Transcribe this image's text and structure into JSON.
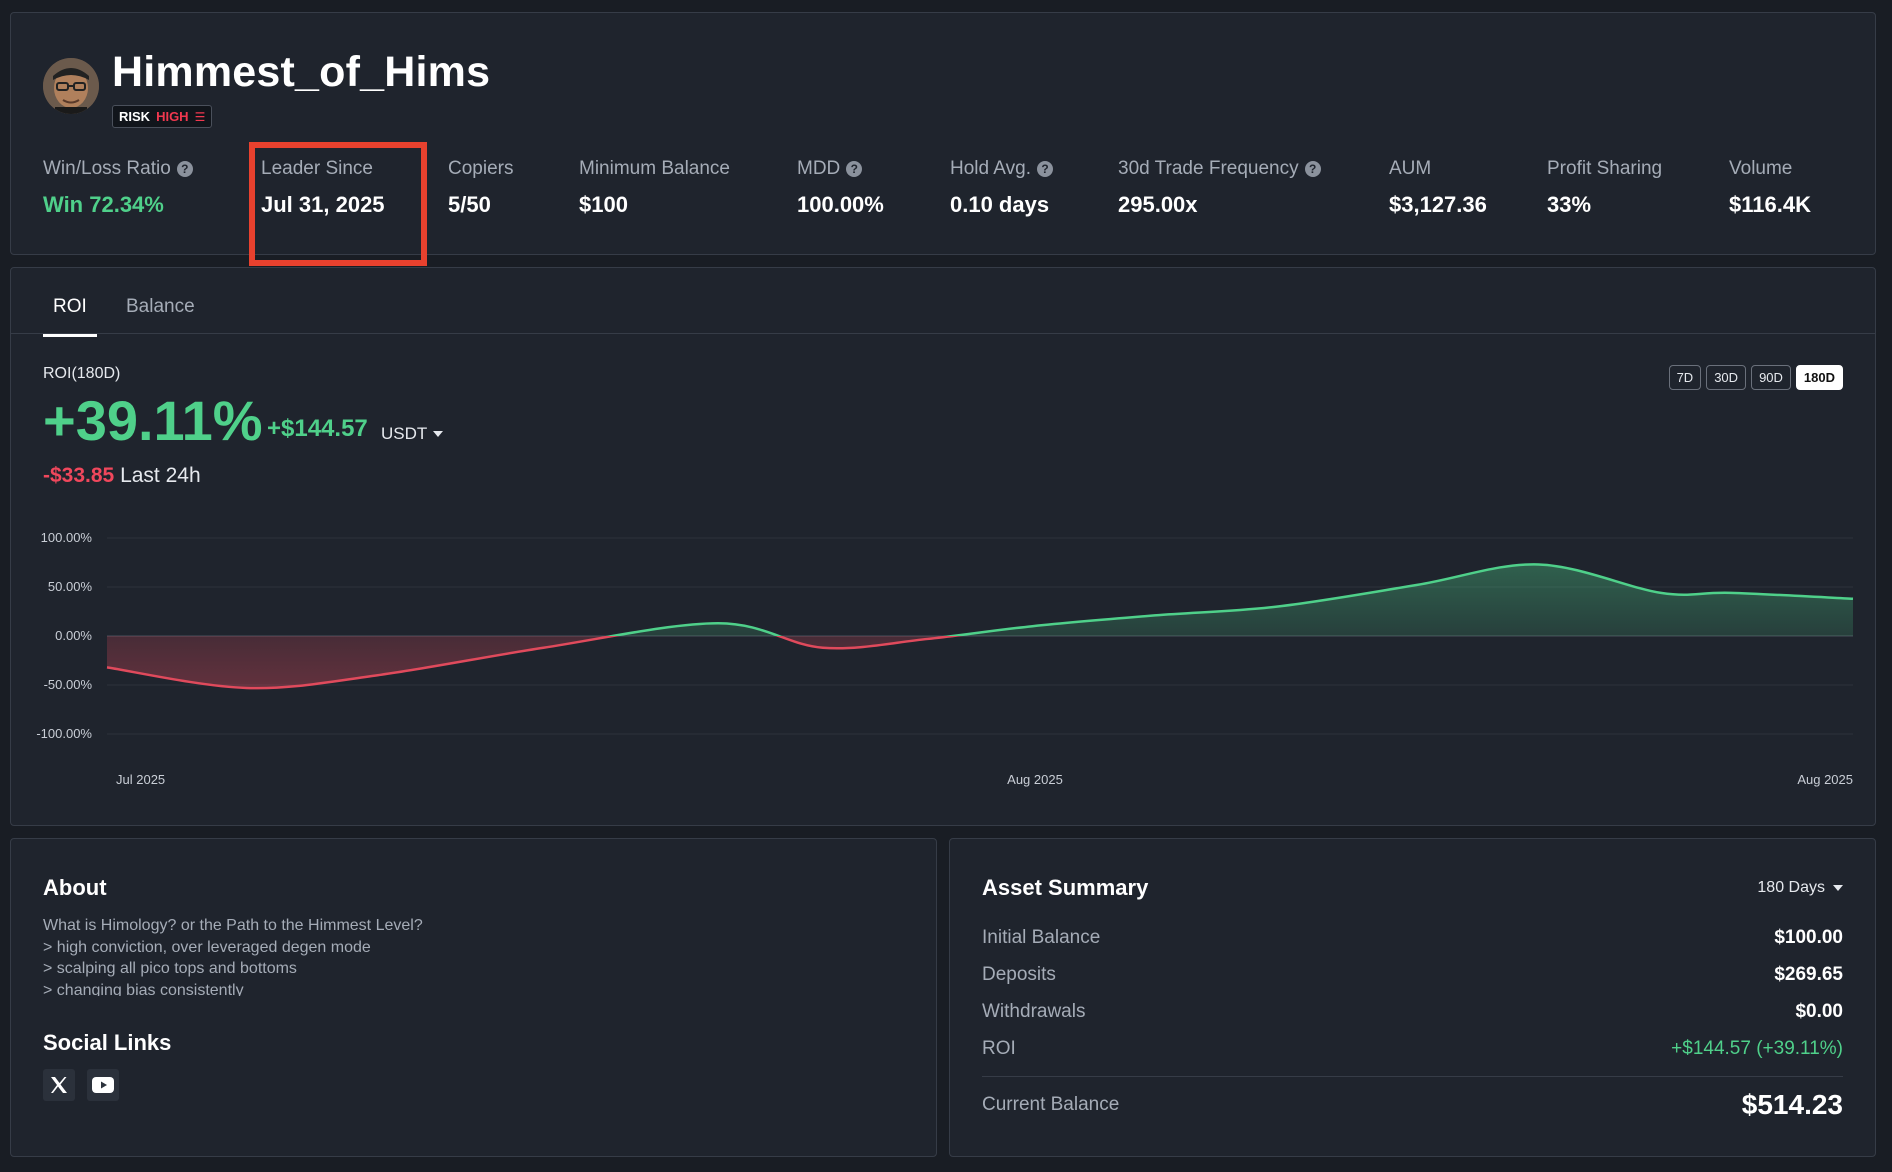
{
  "profile": {
    "name": "Himmest_of_Hims",
    "risk_label": "RISK",
    "risk_level": "HIGH",
    "risk_icon": "risk-level-bars-icon"
  },
  "stats": [
    {
      "label": "Win/Loss Ratio",
      "value": "Win 72.34%",
      "help": true,
      "color": "#4fd08a"
    },
    {
      "label": "Leader Since",
      "value": "Jul 31, 2025",
      "help": false,
      "highlighted": true
    },
    {
      "label": "Copiers",
      "value": "5/50",
      "help": false
    },
    {
      "label": "Minimum Balance",
      "value": "$100",
      "help": false
    },
    {
      "label": "MDD",
      "value": "100.00%",
      "help": true
    },
    {
      "label": "Hold Avg.",
      "value": "0.10 days",
      "help": true
    },
    {
      "label": "30d Trade Frequency",
      "value": "295.00x",
      "help": true
    },
    {
      "label": "AUM",
      "value": "$3,127.36",
      "help": false
    },
    {
      "label": "Profit Sharing",
      "value": "33%",
      "help": false
    },
    {
      "label": "Volume",
      "value": "$116.4K",
      "help": false
    }
  ],
  "tabs": [
    {
      "label": "ROI",
      "active": true
    },
    {
      "label": "Balance",
      "active": false
    }
  ],
  "roi": {
    "label": "ROI(180D)",
    "percent": "+39.11%",
    "pnl": "+$144.57",
    "currency": "USDT",
    "change_24h": "-$33.85",
    "change_24h_label": "Last 24h"
  },
  "ranges": [
    {
      "label": "7D",
      "active": false
    },
    {
      "label": "30D",
      "active": false
    },
    {
      "label": "90D",
      "active": false
    },
    {
      "label": "180D",
      "active": true
    }
  ],
  "chart_data": {
    "type": "area",
    "ylim": [
      -100,
      100
    ],
    "ytick_labels": [
      "100.00%",
      "50.00%",
      "0.00%",
      "-50.00%",
      "-100.00%"
    ],
    "yticks": [
      100,
      50,
      0,
      -50,
      -100
    ],
    "xtick_labels": [
      "Jul 2025",
      "Aug 2025",
      "Aug 2025"
    ],
    "x": [
      0,
      0.08,
      0.155,
      0.25,
      0.35,
      0.41,
      0.47,
      0.53,
      0.6,
      0.67,
      0.75,
      0.82,
      0.89,
      0.93,
      1.0
    ],
    "series": [
      {
        "values": [
          -32,
          -53,
          -40,
          -12,
          13,
          -12,
          -3,
          10,
          21,
          30,
          52,
          73,
          44,
          44,
          38
        ]
      }
    ],
    "colors": {
      "positive": "#4fd08a",
      "negative": "#e04a5c"
    },
    "grid": true
  },
  "about": {
    "title": "About",
    "lines": [
      "What is Himology? or the Path to the Himmest Level?",
      "> high conviction, over leveraged degen mode",
      "> scalping all pico tops and bottoms",
      "> changing bias consistently"
    ]
  },
  "social": {
    "title": "Social Links",
    "links": [
      {
        "icon": "x-logo-icon"
      },
      {
        "icon": "youtube-icon"
      }
    ]
  },
  "asset_summary": {
    "title": "Asset Summary",
    "period": "180 Days",
    "rows": [
      {
        "label": "Initial Balance",
        "value": "$100.00"
      },
      {
        "label": "Deposits",
        "value": "$269.65"
      },
      {
        "label": "Withdrawals",
        "value": "$0.00"
      },
      {
        "label": "ROI",
        "value": "+$144.57 (+39.11%)",
        "color": "#4fd08a"
      }
    ],
    "current_balance_label": "Current Balance",
    "current_balance_value": "$514.23"
  }
}
